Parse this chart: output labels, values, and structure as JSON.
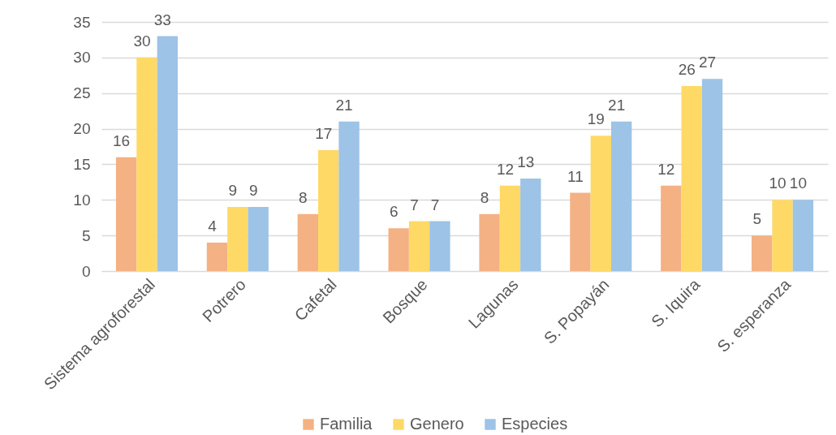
{
  "chart_data": {
    "type": "bar",
    "categories": [
      "Sistema agroforestal",
      "Potrero",
      "Cafetal",
      "Bosque",
      "Lagunas",
      "S. Popayán",
      "S. Iquira",
      "S. esperanza"
    ],
    "series": [
      {
        "name": "Familia",
        "color": "#f4b183",
        "values": [
          16,
          4,
          8,
          6,
          8,
          11,
          12,
          5
        ]
      },
      {
        "name": "Genero",
        "color": "#ffd966",
        "values": [
          30,
          9,
          17,
          7,
          12,
          19,
          26,
          10
        ]
      },
      {
        "name": "Especies",
        "color": "#9dc3e6",
        "values": [
          33,
          9,
          21,
          7,
          13,
          21,
          27,
          10
        ]
      }
    ],
    "ylim": [
      0,
      35
    ],
    "yticks": [
      0,
      5,
      10,
      15,
      20,
      25,
      30,
      35
    ],
    "grid": "y",
    "legend": "bottom",
    "data_labels": true
  }
}
